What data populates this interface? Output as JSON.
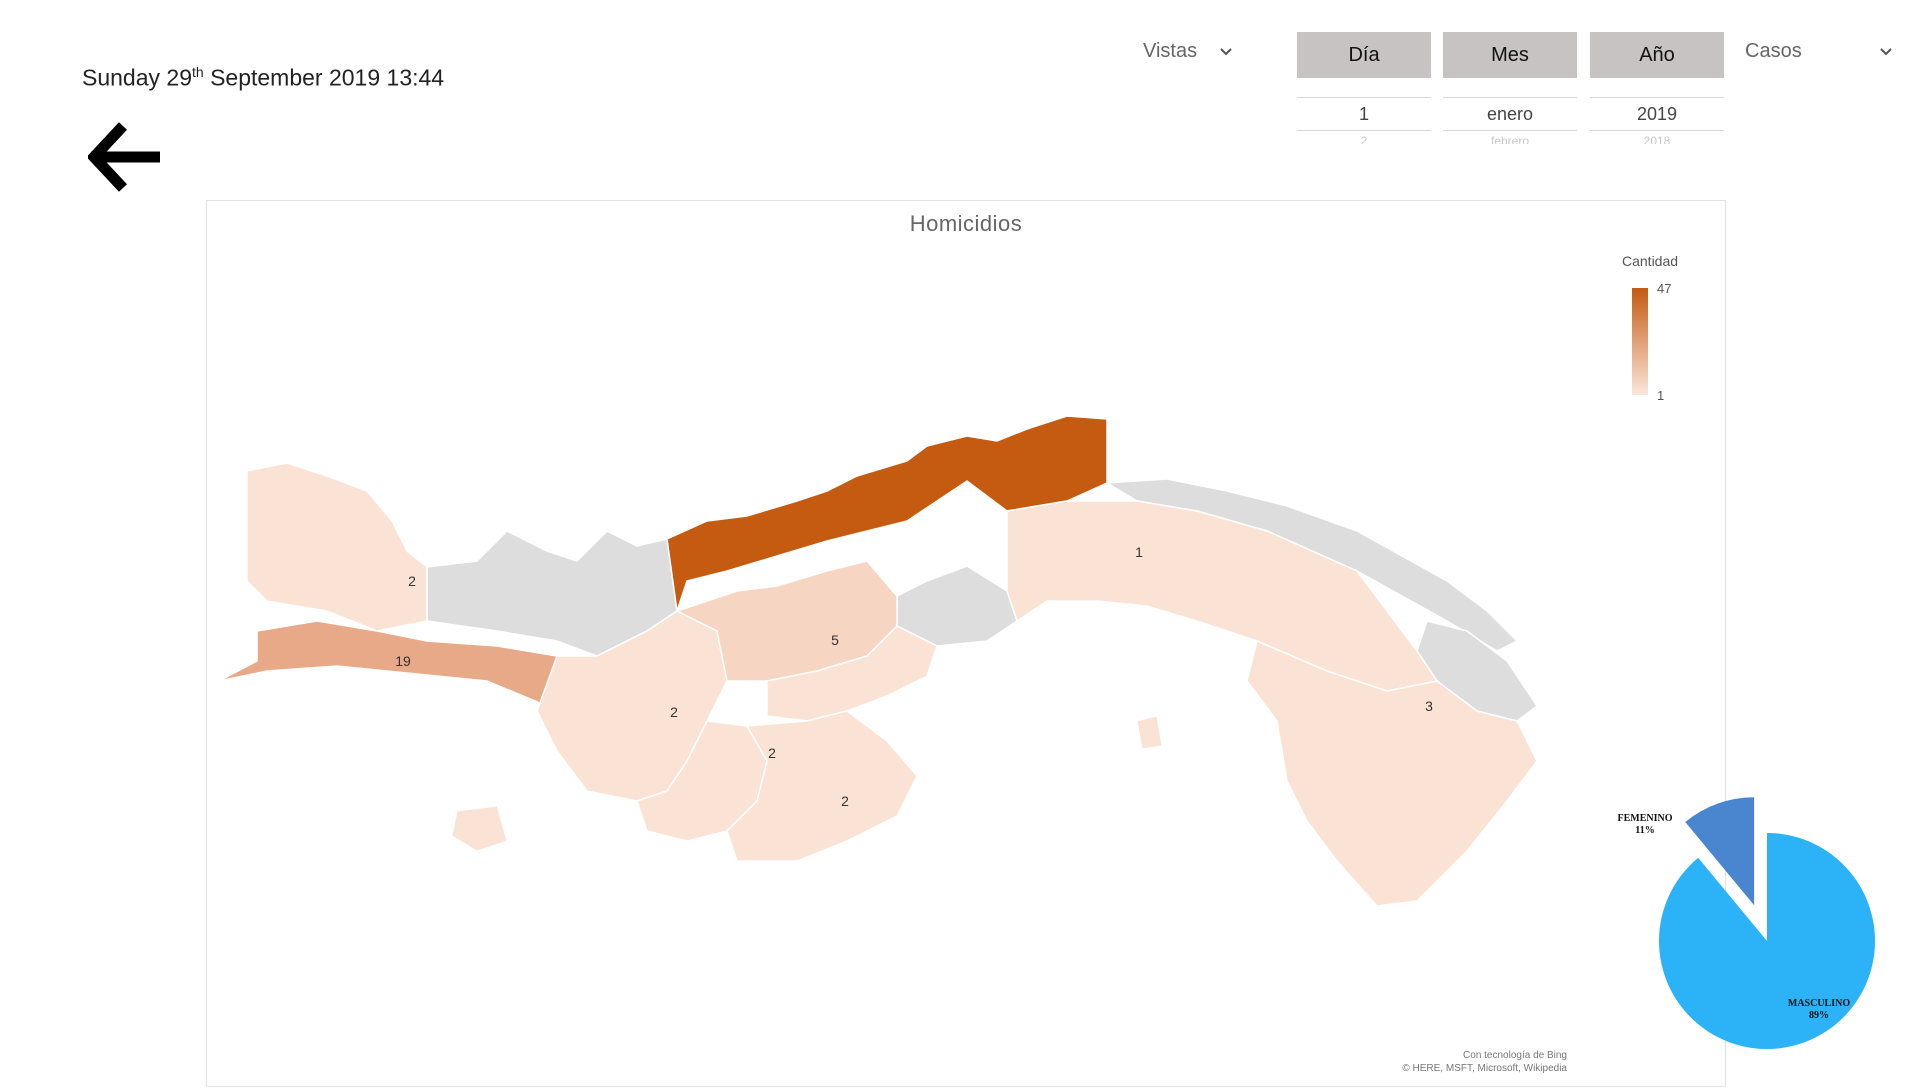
{
  "header": {
    "day_name": "Sunday",
    "day_number": "29",
    "day_suffix": "th",
    "rest": "September 2019 13:44"
  },
  "icons": {
    "back": "arrow-left-icon",
    "chevron": "chevron-down-icon"
  },
  "dropdowns": {
    "vistas_label": "Vistas",
    "casos_label": "Casos"
  },
  "date_picker": {
    "day": {
      "label": "Día",
      "selected": "1",
      "next": "2"
    },
    "month": {
      "label": "Mes",
      "selected": "enero",
      "next": "febrero"
    },
    "year": {
      "label": "Año",
      "selected": "2019",
      "next": "2018"
    }
  },
  "map": {
    "title": "Homicidios",
    "legend": {
      "title": "Cantidad",
      "max": "47",
      "min": "1",
      "color_max": "#c55a11",
      "color_min": "#fbe6da"
    },
    "attribution_line1": "Con tecnología de Bing",
    "attribution_line2": "© HERE, MSFT, Microsoft, Wikipedia",
    "labels": [
      {
        "region": "bocas-del-toro",
        "value": "2"
      },
      {
        "region": "chiriqui",
        "value": "19"
      },
      {
        "region": "colon",
        "value": "47"
      },
      {
        "region": "panama",
        "value": "1"
      },
      {
        "region": "cocle",
        "value": "5"
      },
      {
        "region": "veraguas",
        "value": "2"
      },
      {
        "region": "herrera",
        "value": "2"
      },
      {
        "region": "los-santos",
        "value": "2"
      },
      {
        "region": "darien",
        "value": "3"
      }
    ],
    "colors": {
      "no_data": "#dddddd",
      "low": "#fae3d5",
      "mid": "#e8a988",
      "high": "#c55a11"
    }
  },
  "gender_pie": {
    "slices": [
      {
        "label": "FEMENINO",
        "percent": "11%",
        "value": 11,
        "color": "#4a86d0"
      },
      {
        "label": "MASCULINO",
        "percent": "89%",
        "value": 89,
        "color": "#2cb3f7"
      }
    ]
  }
}
